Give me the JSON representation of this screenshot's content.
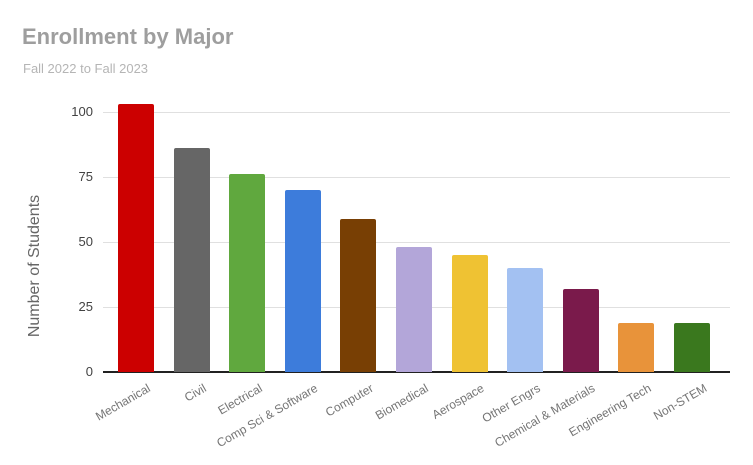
{
  "chart_data": {
    "type": "bar",
    "title": "Enrollment by Major",
    "subtitle": "Fall 2022 to Fall 2023",
    "xlabel": "",
    "ylabel": "Number of Students",
    "categories": [
      "Mechanical",
      "Civil",
      "Electrical",
      "Comp Sci & Software",
      "Computer",
      "Biomedical",
      "Aerospace",
      "Other Engrs",
      "Chemical & Materials",
      "Engineering Tech",
      "Non-STEM"
    ],
    "values": [
      103,
      86,
      76,
      70,
      59,
      48,
      45,
      40,
      32,
      19,
      19
    ],
    "bar_colors": [
      "#cc0000",
      "#666666",
      "#60a83e",
      "#3d7cdb",
      "#783f04",
      "#b3a6d9",
      "#efc233",
      "#a3c1f2",
      "#7a1a4b",
      "#e8933a",
      "#3a781e"
    ],
    "yticks": [
      0,
      25,
      50,
      75,
      100
    ],
    "ylim": [
      0,
      100
    ],
    "grid": true,
    "legend": "none",
    "category_label_rotation_deg": -30
  },
  "colors": {
    "background": "#ffffff",
    "title_text": "#9e9e9e",
    "subtitle_text": "#b5b5b5",
    "axis_title_text": "#666666",
    "tick_label_text": "#424242",
    "category_label_text": "#757575",
    "gridline": "#e0e0e0",
    "baseline": "#212121"
  }
}
